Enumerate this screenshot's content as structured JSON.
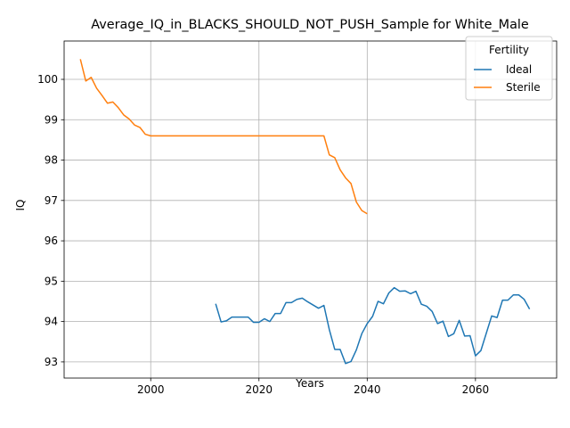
{
  "chart_data": {
    "type": "line",
    "title": "Average_IQ_in_BLACKS_SHOULD_NOT_PUSH_Sample for White_Male",
    "xlabel": "Years",
    "ylabel": "IQ",
    "xlim": [
      1984,
      2075
    ],
    "ylim": [
      92.6,
      100.95
    ],
    "xticks": [
      2000,
      2020,
      2040,
      2060
    ],
    "yticks": [
      93,
      94,
      95,
      96,
      97,
      98,
      99,
      100
    ],
    "grid": true,
    "legend": {
      "title": "Fertility",
      "placement": "top-right"
    },
    "colors": {
      "Ideal": "#1f77b4",
      "Sterile": "#ff7f0e"
    },
    "series": [
      {
        "name": "Ideal",
        "x": [
          2012,
          2013,
          2014,
          2015,
          2016,
          2017,
          2018,
          2019,
          2020,
          2021,
          2022,
          2023,
          2024,
          2025,
          2026,
          2027,
          2028,
          2029,
          2030,
          2031,
          2032,
          2033,
          2034,
          2035,
          2036,
          2037,
          2038,
          2039,
          2040,
          2041,
          2042,
          2043,
          2044,
          2045,
          2046,
          2047,
          2048,
          2049,
          2050,
          2051,
          2052,
          2053,
          2054,
          2055,
          2056,
          2057,
          2058,
          2059,
          2060,
          2061,
          2062,
          2063,
          2064,
          2065,
          2066,
          2067,
          2068,
          2069,
          2070
        ],
        "values": [
          94.44,
          93.99,
          94.02,
          94.11,
          94.11,
          94.11,
          94.11,
          93.98,
          93.98,
          94.07,
          94.0,
          94.2,
          94.2,
          94.47,
          94.47,
          94.55,
          94.58,
          94.49,
          94.41,
          94.33,
          94.4,
          93.8,
          93.31,
          93.31,
          92.96,
          93.01,
          93.3,
          93.7,
          93.95,
          94.13,
          94.5,
          94.44,
          94.71,
          94.84,
          94.75,
          94.76,
          94.69,
          94.75,
          94.43,
          94.38,
          94.25,
          93.95,
          94.01,
          93.63,
          93.7,
          94.03,
          93.64,
          93.65,
          93.15,
          93.28,
          93.71,
          94.14,
          94.1,
          94.53,
          94.53,
          94.66,
          94.66,
          94.55,
          94.31
        ]
      },
      {
        "name": "Sterile",
        "x": [
          1987,
          1988,
          1989,
          1990,
          1991,
          1992,
          1993,
          1994,
          1995,
          1996,
          1997,
          1998,
          1999,
          2000,
          2001,
          2010,
          2020,
          2030,
          2031,
          2032,
          2033,
          2034,
          2035,
          2036,
          2037,
          2038,
          2039,
          2040
        ],
        "values": [
          100.5,
          99.96,
          100.05,
          99.78,
          99.6,
          99.41,
          99.44,
          99.3,
          99.12,
          99.02,
          98.87,
          98.81,
          98.64,
          98.6,
          98.6,
          98.6,
          98.6,
          98.6,
          98.6,
          98.6,
          98.13,
          98.06,
          97.76,
          97.56,
          97.42,
          96.96,
          96.75,
          96.67
        ]
      }
    ]
  }
}
